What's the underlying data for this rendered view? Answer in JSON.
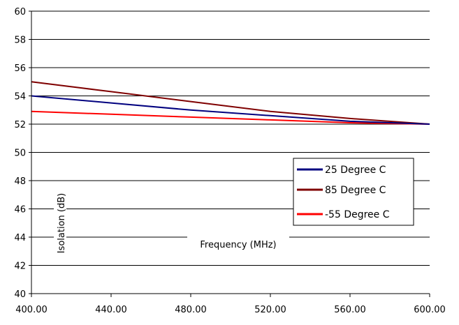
{
  "chart_data": {
    "type": "line",
    "title": "",
    "xlabel": "Frequency (MHz)",
    "ylabel": "Isolation (dB)",
    "xlim": [
      400,
      600
    ],
    "ylim": [
      40,
      60
    ],
    "x_ticks": [
      "400.00",
      "440.00",
      "480.00",
      "520.00",
      "560.00",
      "600.00"
    ],
    "y_ticks": [
      "40",
      "42",
      "44",
      "46",
      "48",
      "50",
      "52",
      "54",
      "56",
      "58",
      "60"
    ],
    "grid": "horizontal",
    "legend_position": "right-middle",
    "series": [
      {
        "name": "25 Degree C",
        "color": "#00007f",
        "x": [
          400,
          440,
          480,
          520,
          560,
          600
        ],
        "values": [
          54.0,
          53.5,
          53.0,
          52.6,
          52.2,
          52.0
        ]
      },
      {
        "name": "85 Degree C",
        "color": "#7f0000",
        "x": [
          400,
          440,
          480,
          520,
          560,
          600
        ],
        "values": [
          55.0,
          54.3,
          53.6,
          52.9,
          52.4,
          52.0
        ]
      },
      {
        "name": "-55 Degree C",
        "color": "#ff0000",
        "x": [
          400,
          440,
          480,
          520,
          560,
          600
        ],
        "values": [
          52.9,
          52.7,
          52.5,
          52.3,
          52.1,
          52.0
        ]
      }
    ]
  }
}
